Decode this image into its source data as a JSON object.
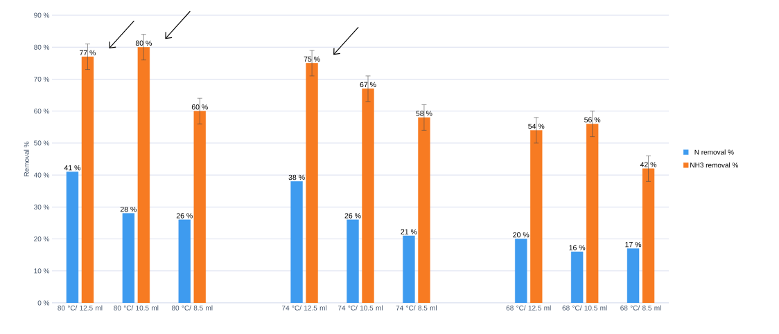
{
  "chart_data": {
    "type": "bar",
    "ylabel": "Removal %",
    "categories": [
      "80 °C/ 12.5 ml",
      "80 °C/ 10.5 ml",
      "80 °C/ 8.5 ml",
      null,
      "74 °C/ 12.5 ml",
      "74 °C/ 10.5 ml",
      "74 °C/ 8.5 ml",
      null,
      "68 °C/ 12.5 ml",
      "68 °C/ 10.5 ml",
      "68 °C/ 8.5 ml"
    ],
    "series": [
      {
        "name": "N removal %",
        "color": "#3e9bef",
        "values": [
          41,
          28,
          26,
          null,
          38,
          26,
          21,
          null,
          20,
          16,
          17
        ],
        "value_labels": [
          "41 %",
          "28 %",
          "26 %",
          null,
          "38 %",
          "26 %",
          "21 %",
          null,
          "20 %",
          "16 %",
          "17 %"
        ]
      },
      {
        "name": "NH3 removal %",
        "color": "#f77b22",
        "values": [
          77,
          80,
          60,
          null,
          75,
          67,
          58,
          null,
          54,
          56,
          42
        ],
        "value_labels": [
          "77 %",
          "80 %",
          "60 %",
          null,
          "75 %",
          "67 %",
          "58 %",
          null,
          "54 %",
          "56 %",
          "42 %"
        ],
        "errors": [
          4,
          4,
          4,
          null,
          4,
          4,
          4,
          null,
          4,
          4,
          4
        ]
      }
    ],
    "ylim": [
      0,
      90
    ],
    "yticks": [
      {
        "value": 0,
        "label": "0 %"
      },
      {
        "value": 10,
        "label": "10 %"
      },
      {
        "value": 20,
        "label": "20 %"
      },
      {
        "value": 30,
        "label": "30 %"
      },
      {
        "value": 40,
        "label": "40 %"
      },
      {
        "value": 50,
        "label": "50 %"
      },
      {
        "value": 60,
        "label": "60 %"
      },
      {
        "value": 70,
        "label": "70 %"
      },
      {
        "value": 80,
        "label": "80 %"
      },
      {
        "value": 90,
        "label": "90 %"
      }
    ],
    "grid": "y",
    "legend": "right"
  }
}
